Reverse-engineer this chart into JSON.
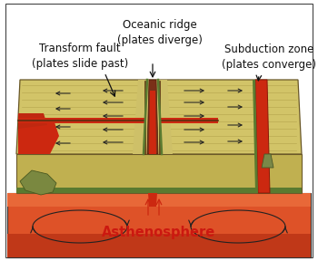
{
  "background_color": "#ffffff",
  "labels": {
    "oceanic_ridge": "Oceanic ridge\n(plates diverge)",
    "transform_fault": "Transform fault\n(plates slide past)",
    "subduction_zone": "Subduction zone\n(plates converge)",
    "asthenosphere": "Asthenosphere"
  },
  "colors": {
    "plate_top": "#d2c468",
    "plate_side": "#c0b050",
    "plate_edge": "#6a5828",
    "asth_main": "#de5228",
    "asth_light": "#e86838",
    "asth_dark": "#c03818",
    "ridge_crack": "#8b3520",
    "magma_red": "#cc2810",
    "green_edge": "#5a7a30",
    "outline": "#333333",
    "arrow": "#222222",
    "text": "#111111",
    "asth_text": "#cc1810",
    "texture": "#b8a850"
  },
  "font_sizes": {
    "labels": 8.5,
    "asthenosphere": 10.5
  }
}
